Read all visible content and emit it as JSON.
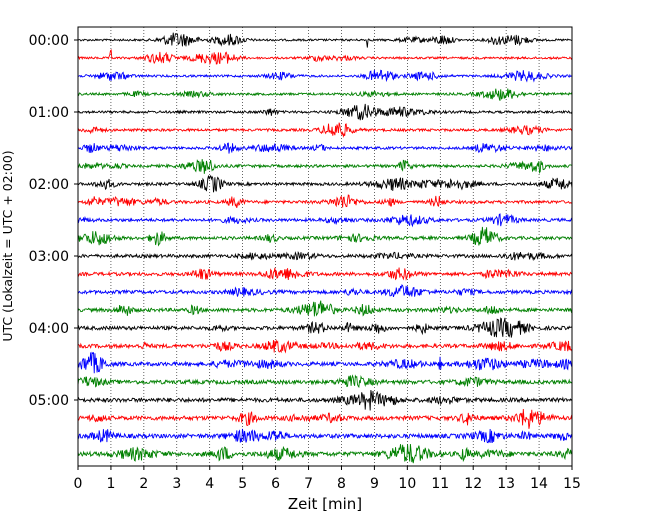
{
  "chart_data": {
    "type": "line",
    "title": "",
    "xlabel": "Zeit  [min]",
    "ylabel": "UTC (Lokalzeit = UTC + 02:00)",
    "xlim": [
      0,
      15
    ],
    "x_ticks": [
      "0",
      "1",
      "2",
      "3",
      "4",
      "5",
      "6",
      "7",
      "8",
      "9",
      "10",
      "11",
      "12",
      "13",
      "14",
      "15"
    ],
    "y_ticks": [
      "00:00",
      "01:00",
      "02:00",
      "03:00",
      "04:00",
      "05:00"
    ],
    "grid": "vertical dotted lines at each minute",
    "trace_interval_minutes": 15,
    "trace_count": 24,
    "trace_start_times": [
      "00:00",
      "00:15",
      "00:30",
      "00:45",
      "01:00",
      "01:15",
      "01:30",
      "01:45",
      "02:00",
      "02:15",
      "02:30",
      "02:45",
      "03:00",
      "03:15",
      "03:30",
      "03:45",
      "04:00",
      "04:15",
      "04:30",
      "04:45",
      "05:00",
      "05:15",
      "05:30",
      "05:45"
    ],
    "color_cycle": [
      "#000000",
      "#ff0000",
      "#0000ff",
      "#008000"
    ],
    "notable_events": [
      {
        "trace": "00:15",
        "minute": 1.0,
        "type": "spike"
      },
      {
        "trace": "00:00",
        "minute": 8.8,
        "type": "spike"
      },
      {
        "trace": "04:30",
        "minute": 11.0,
        "type": "spike"
      },
      {
        "trace": "05:45",
        "minute": 4.4,
        "type": "burst"
      }
    ]
  }
}
